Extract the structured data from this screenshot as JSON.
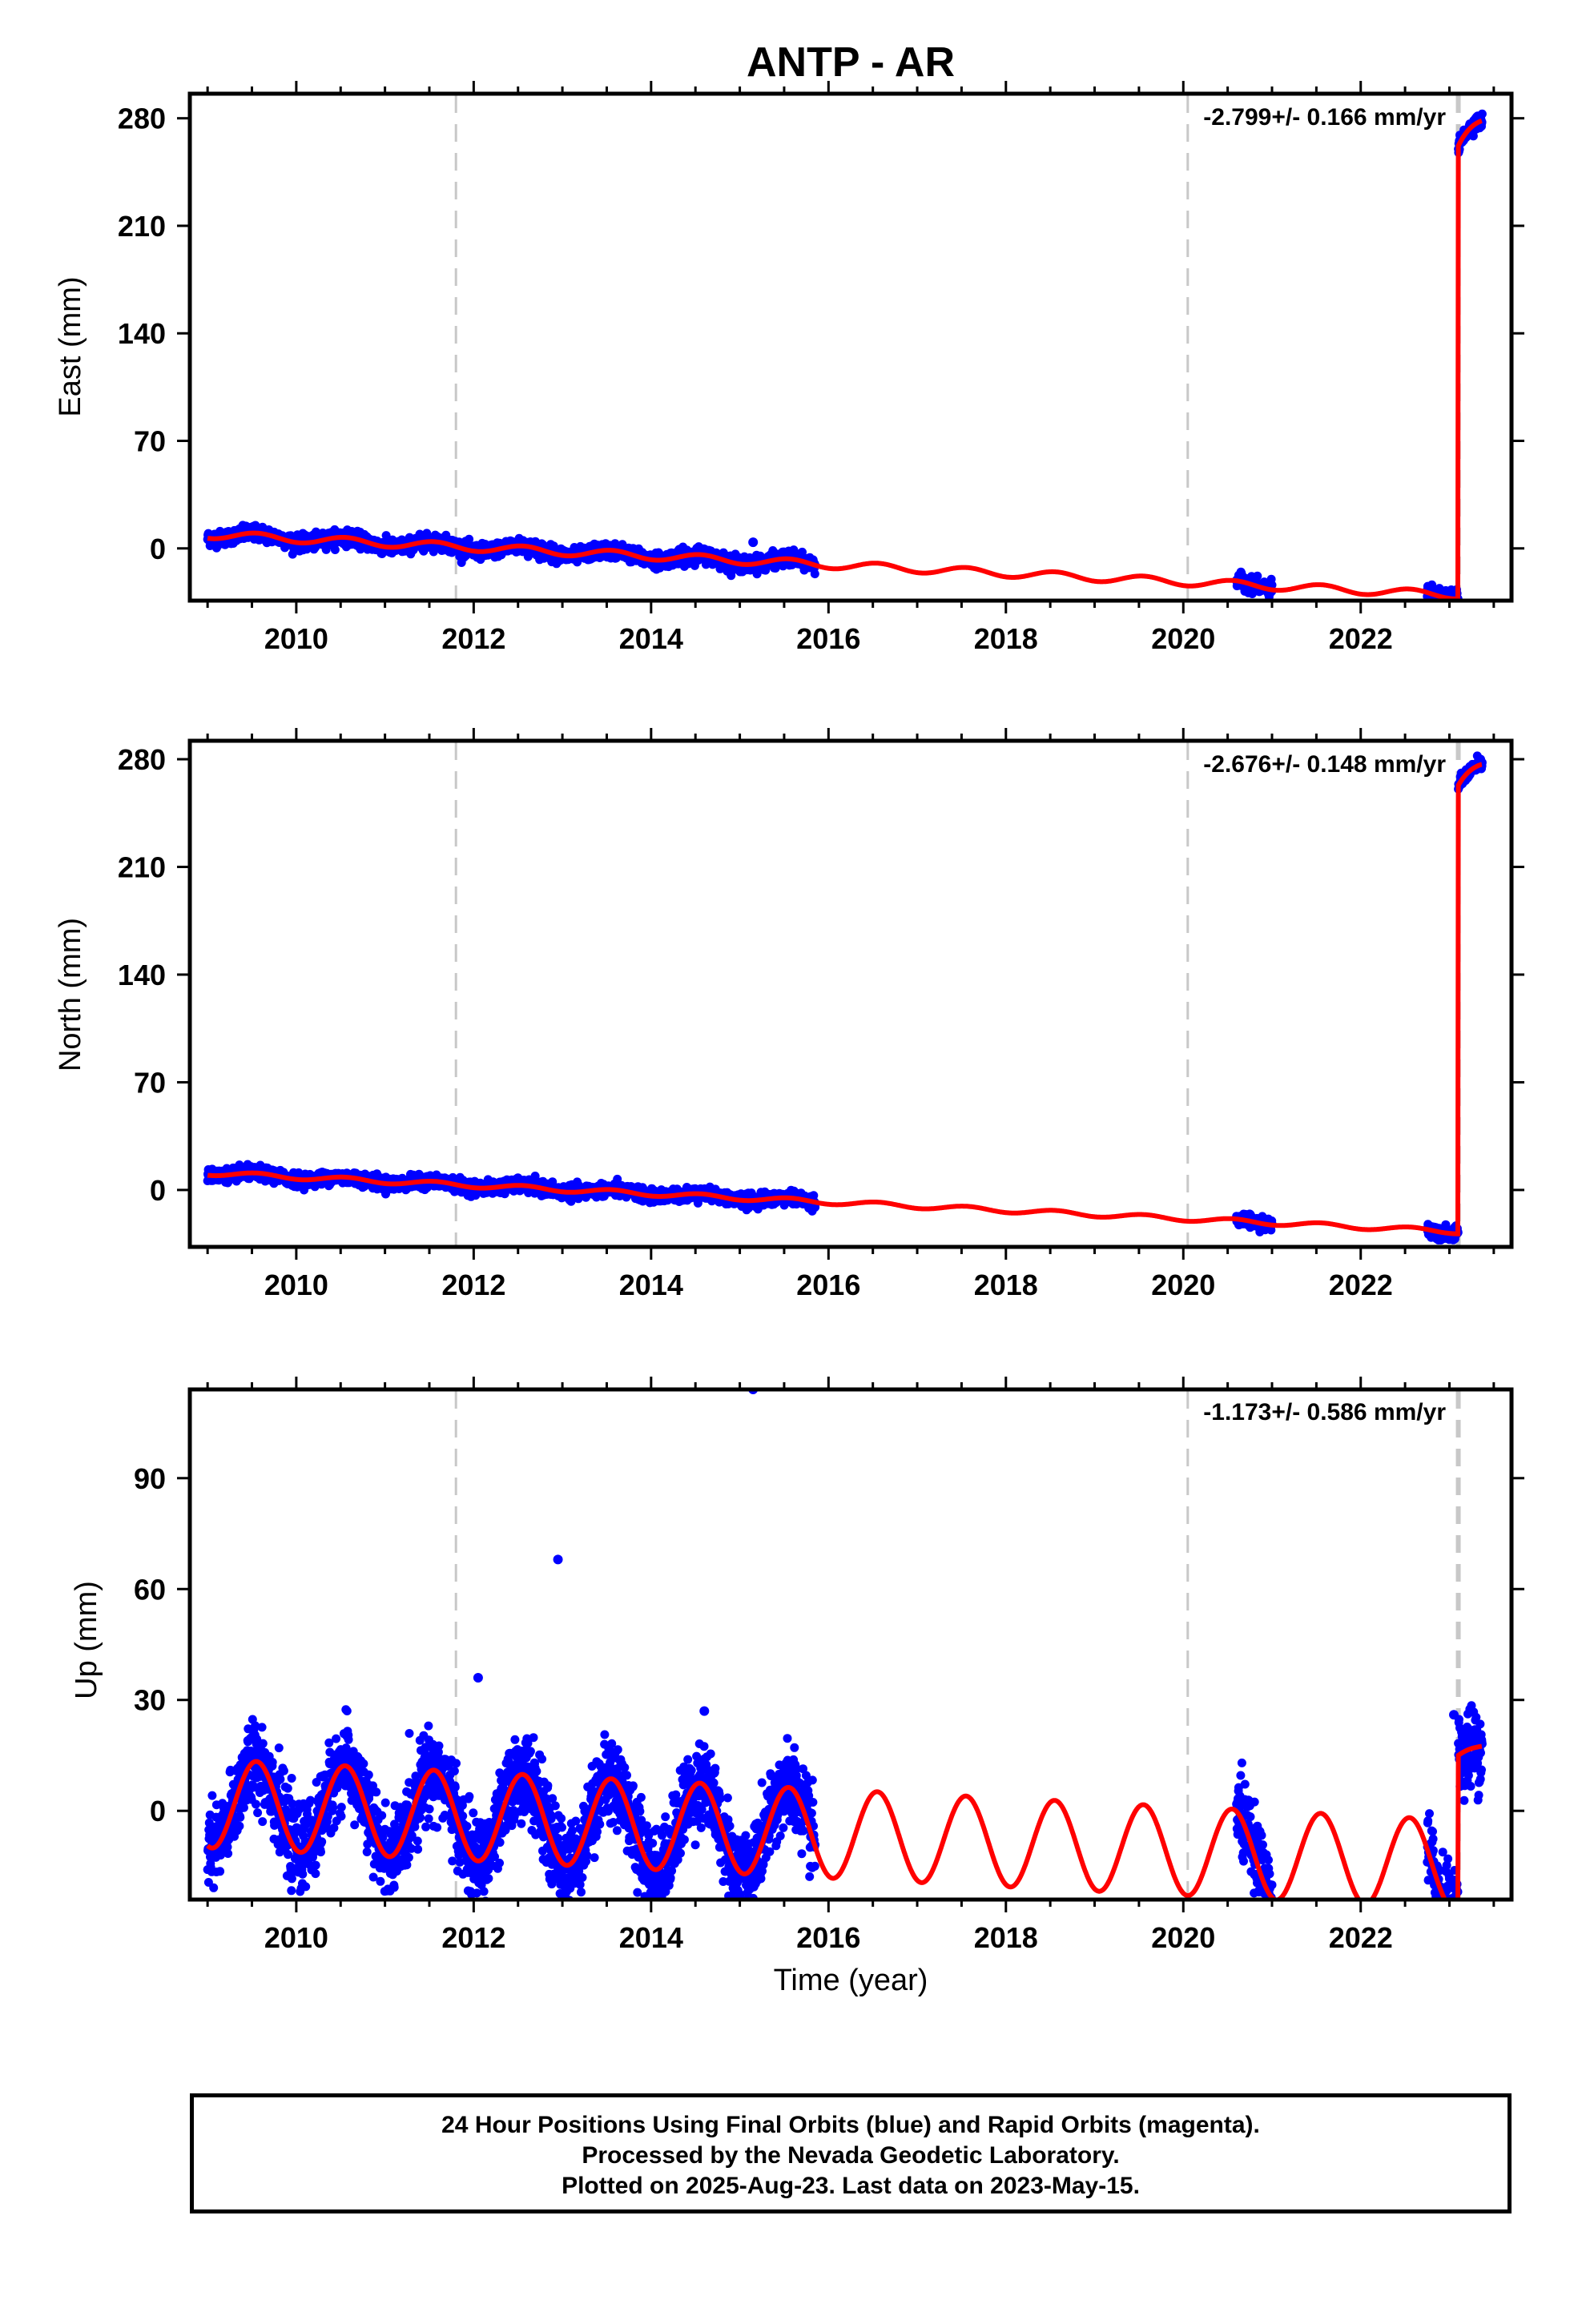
{
  "title": "ANTP - AR",
  "footer": {
    "line1": "24 Hour Positions Using Final Orbits (blue) and Rapid Orbits (magenta).",
    "line2": "Processed by the Nevada Geodetic Laboratory.",
    "line3": "Plotted on 2025-Aug-23. Last data on 2023-May-15."
  },
  "colors": {
    "final": "#0000ff",
    "rapid": "#ff00ff",
    "model": "#ff0000",
    "breaks": "#c8c8c8"
  },
  "chart_data": [
    {
      "type": "scatter",
      "ylabel": "East (mm)",
      "xlabel": "",
      "rate": "-2.799+/- 0.166 mm/yr",
      "xlim": [
        2008.8,
        2023.7
      ],
      "ylim": [
        -34,
        296
      ],
      "xticks": [
        "2010",
        "2012",
        "2014",
        "2016",
        "2018",
        "2020",
        "2022"
      ],
      "yticks": [
        "0",
        "70",
        "140",
        "210",
        "280"
      ],
      "breaks": [
        2011.8,
        2020.05,
        2023.1
      ],
      "trend": {
        "start": 2009.0,
        "startValue": 9,
        "rate": -2.8,
        "seasonalAmp": 2.5,
        "jumpAt": 2023.1,
        "jumpTo": 262,
        "postRate": 120,
        "postEnd": 2023.37
      },
      "data_spans": [
        [
          2009.0,
          2015.85
        ],
        [
          2020.6,
          2021.0
        ],
        [
          2022.75,
          2023.37
        ]
      ],
      "scatter_sd": 2.3,
      "outliers": [
        {
          "x": 2015.15,
          "y": 4
        }
      ]
    },
    {
      "type": "scatter",
      "ylabel": "North (mm)",
      "xlabel": "",
      "rate": "-2.676+/- 0.148 mm/yr",
      "xlim": [
        2008.8,
        2023.7
      ],
      "ylim": [
        -37,
        292
      ],
      "xticks": [
        "2010",
        "2012",
        "2014",
        "2016",
        "2018",
        "2020",
        "2022"
      ],
      "yticks": [
        "0",
        "70",
        "140",
        "210",
        "280"
      ],
      "breaks": [
        2011.8,
        2020.05,
        2023.1
      ],
      "trend": {
        "start": 2009.0,
        "startValue": 11,
        "rate": -2.7,
        "seasonalAmp": 1.5,
        "jumpAt": 2023.1,
        "jumpTo": 263,
        "postRate": 100,
        "postEnd": 2023.37
      },
      "data_spans": [
        [
          2009.0,
          2015.85
        ],
        [
          2020.6,
          2021.0
        ],
        [
          2022.75,
          2023.37
        ]
      ],
      "scatter_sd": 2.0,
      "outliers": []
    },
    {
      "type": "scatter",
      "ylabel": "Up (mm)",
      "xlabel": "Time (year)",
      "rate": "-1.173+/- 0.586 mm/yr",
      "xlim": [
        2008.8,
        2023.7
      ],
      "ylim": [
        -24,
        114
      ],
      "xticks": [
        "2010",
        "2012",
        "2014",
        "2016",
        "2018",
        "2020",
        "2022"
      ],
      "yticks": [
        "0",
        "30",
        "60",
        "90"
      ],
      "breaks": [
        2011.8,
        2020.05,
        2023.1
      ],
      "trend": {
        "start": 2009.0,
        "startValue": 2,
        "rate": -1.17,
        "seasonalAmp": 12,
        "jumpAt": 2023.1,
        "jumpTo": 15,
        "postRate": 18,
        "postEnd": 2023.37
      },
      "data_spans": [
        [
          2009.0,
          2015.85
        ],
        [
          2020.6,
          2021.0
        ],
        [
          2022.75,
          2023.37
        ]
      ],
      "scatter_sd": 5.5,
      "outliers": [
        {
          "x": 2012.05,
          "y": 36
        },
        {
          "x": 2012.95,
          "y": 68
        },
        {
          "x": 2015.15,
          "y": 114
        },
        {
          "x": 2014.6,
          "y": 27
        },
        {
          "x": 2023.05,
          "y": 26
        }
      ]
    }
  ]
}
